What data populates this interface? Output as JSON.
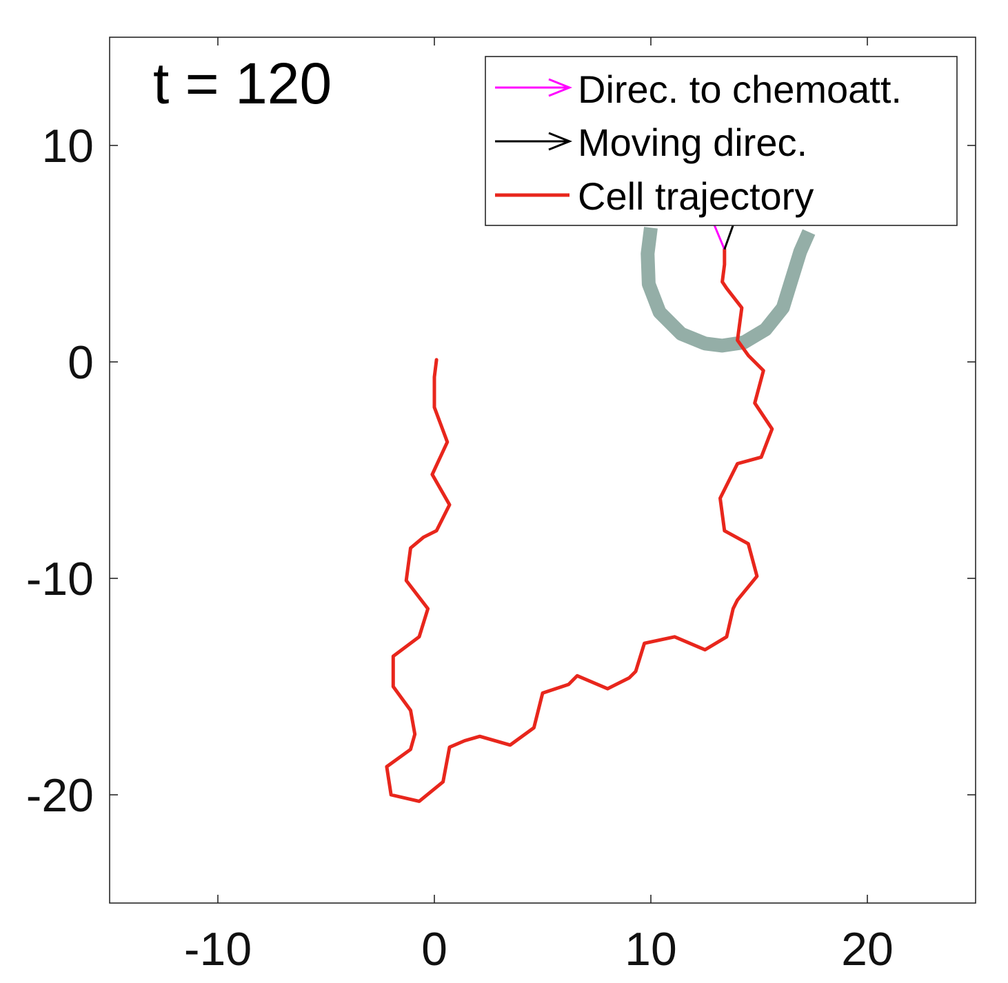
{
  "chart_data": {
    "type": "line",
    "title": "",
    "xlabel": "",
    "ylabel": "",
    "annotation": "t = 120",
    "xlim": [
      -15,
      25
    ],
    "ylim": [
      -25,
      15
    ],
    "xticks": [
      -10,
      0,
      10,
      20
    ],
    "xtick_labels": [
      "-10",
      "0",
      "10",
      "20"
    ],
    "yticks": [
      10,
      0,
      -10,
      -20
    ],
    "ytick_labels": [
      "10",
      "0",
      "-10",
      "-20"
    ],
    "grid": false,
    "legend_position": "top-right",
    "legend": [
      {
        "label": "Direc. to chemoatt.",
        "color": "#ff00ff",
        "symbol": "arrow"
      },
      {
        "label": "Moving direc.",
        "color": "#000000",
        "symbol": "arrow"
      },
      {
        "label": "Cell trajectory",
        "color": "#e8261c",
        "symbol": "line"
      }
    ],
    "series": [
      {
        "name": "Cell trajectory",
        "color": "#e8261c",
        "points": [
          [
            0.1,
            0.1
          ],
          [
            0.0,
            -0.7
          ],
          [
            0.0,
            -1.4
          ],
          [
            0.0,
            -2.1
          ],
          [
            0.6,
            -3.7
          ],
          [
            -0.1,
            -5.2
          ],
          [
            0.7,
            -6.6
          ],
          [
            0.1,
            -7.8
          ],
          [
            -0.5,
            -8.1
          ],
          [
            -1.1,
            -8.6
          ],
          [
            -1.3,
            -10.1
          ],
          [
            -0.3,
            -11.4
          ],
          [
            -0.7,
            -12.7
          ],
          [
            -1.9,
            -13.6
          ],
          [
            -1.9,
            -15.0
          ],
          [
            -1.1,
            -16.1
          ],
          [
            -0.9,
            -17.2
          ],
          [
            -1.1,
            -17.9
          ],
          [
            -2.2,
            -18.7
          ],
          [
            -2.0,
            -20.0
          ],
          [
            -0.7,
            -20.3
          ],
          [
            0.4,
            -19.4
          ],
          [
            0.7,
            -17.8
          ],
          [
            1.4,
            -17.5
          ],
          [
            2.1,
            -17.3
          ],
          [
            3.5,
            -17.7
          ],
          [
            4.6,
            -16.9
          ],
          [
            5.0,
            -15.3
          ],
          [
            6.2,
            -14.9
          ],
          [
            6.6,
            -14.5
          ],
          [
            8.0,
            -15.1
          ],
          [
            9.0,
            -14.6
          ],
          [
            9.3,
            -14.3
          ],
          [
            9.7,
            -13.0
          ],
          [
            11.1,
            -12.7
          ],
          [
            12.5,
            -13.3
          ],
          [
            13.5,
            -12.7
          ],
          [
            13.8,
            -11.4
          ],
          [
            14.0,
            -11.0
          ],
          [
            14.9,
            -9.9
          ],
          [
            14.5,
            -8.4
          ],
          [
            13.4,
            -7.8
          ],
          [
            13.2,
            -6.3
          ],
          [
            14.0,
            -4.7
          ],
          [
            15.1,
            -4.4
          ],
          [
            15.6,
            -3.1
          ],
          [
            14.8,
            -1.9
          ],
          [
            15.2,
            -0.4
          ],
          [
            14.5,
            0.3
          ],
          [
            14.0,
            1.0
          ],
          [
            14.2,
            2.5
          ],
          [
            13.5,
            3.4
          ],
          [
            13.3,
            3.7
          ],
          [
            13.4,
            4.5
          ],
          [
            13.4,
            5.2
          ]
        ]
      },
      {
        "name": "",
        "color": "#94aea7",
        "points": [
          [
            10.0,
            6.2
          ],
          [
            9.85,
            5.0
          ],
          [
            9.9,
            3.6
          ],
          [
            10.4,
            2.3
          ],
          [
            11.4,
            1.3
          ],
          [
            12.5,
            0.85
          ],
          [
            13.3,
            0.75
          ],
          [
            14.3,
            0.9
          ],
          [
            15.3,
            1.5
          ],
          [
            16.1,
            2.5
          ],
          [
            16.5,
            3.8
          ],
          [
            16.9,
            5.1
          ],
          [
            17.3,
            6.0
          ]
        ]
      }
    ],
    "arrows": [
      {
        "name": "Direc. to chemoatt.",
        "color": "#ff00ff",
        "from": [
          13.4,
          5.2
        ],
        "to": [
          12.9,
          6.4
        ]
      },
      {
        "name": "Moving direc.",
        "color": "#000000",
        "from": [
          13.4,
          5.2
        ],
        "to": [
          13.9,
          6.6
        ]
      }
    ]
  }
}
